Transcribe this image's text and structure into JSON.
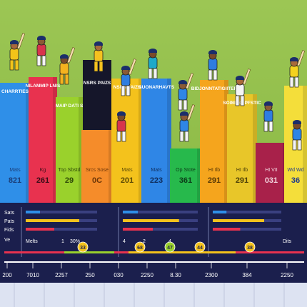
{
  "chart_data": {
    "type": "bar",
    "bars": [
      {
        "category": "CHARRTIES",
        "metric": "Mats",
        "value": "821",
        "color": "#2f8fe8",
        "value_color": "#1b3f7a"
      },
      {
        "category": "NILAMMIP LNIS",
        "metric": "Kg",
        "value": "261",
        "color": "#e8324f",
        "value_color": "#3a0d18"
      },
      {
        "category": "MAIP DATI S",
        "metric": "Top Sbstd",
        "value": "29",
        "color": "#9ad12c",
        "value_color": "#2f4a08"
      },
      {
        "category": "",
        "metric": "Srcs Sose",
        "value": "0C",
        "color": "#f58c2a",
        "value_color": "#6b3508"
      },
      {
        "category": "NSRS PAIZS",
        "metric": "Mats",
        "value": "201",
        "color": "#f4c21c",
        "value_color": "#5c4a05"
      },
      {
        "category": "BUONARHAVTS",
        "metric": "Mats",
        "value": "223",
        "color": "#2f86e6",
        "value_color": "#0f2e5e"
      },
      {
        "category": "",
        "metric": "Op Stote",
        "value": "361",
        "color": "#27b94c",
        "value_color": "#0c3d19"
      },
      {
        "category": "BIDJONNTATIGIITER",
        "metric": "HI Ilb",
        "value": "291",
        "color": "#f5a51d",
        "value_color": "#5a3a05"
      },
      {
        "category": "SOIMESOPFSTIC",
        "metric": "HI Ilb",
        "value": "291",
        "color": "#e8c629",
        "value_color": "#4d4108"
      },
      {
        "category": "",
        "metric": "HI VII",
        "value": "031",
        "color": "#a8214a",
        "value_color": "#f2d4de"
      },
      {
        "category": "",
        "metric": "Wd Wd",
        "value": "36",
        "color": "#f4de3a",
        "value_color": "#1f3b8c"
      }
    ],
    "chart_rows": [
      {
        "label": "Sats"
      },
      {
        "label": "Pats"
      },
      {
        "label": "Fids"
      },
      {
        "label": "Ve"
      }
    ],
    "scale_labels": [
      "Melts",
      "1",
      "30%",
      "4",
      "2",
      "4",
      "Dits"
    ],
    "markers": [
      "33",
      "68",
      "47",
      "44",
      "38"
    ],
    "x_ticks": [
      "200",
      "7010",
      "2257",
      "250",
      "030",
      "2250",
      "8.30",
      "2300",
      "384",
      "2250"
    ],
    "colors": {
      "panel": "#1b1f4d",
      "background": "#8fbc4a"
    }
  }
}
